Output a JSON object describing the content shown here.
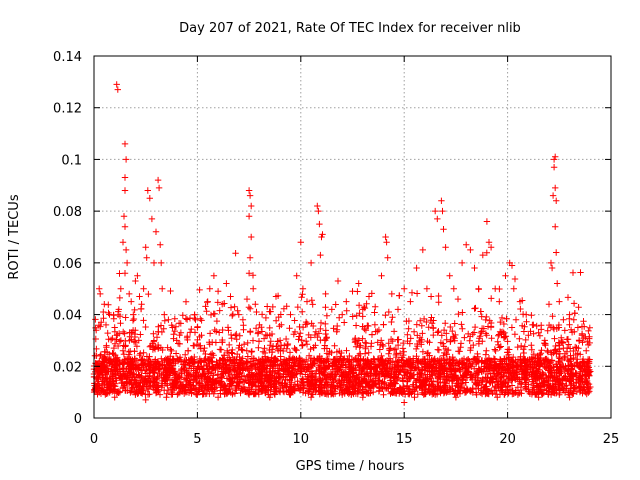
{
  "chart_data": {
    "type": "scatter",
    "title": "Day 207 of 2021, Rate Of TEC Index for receiver nlib",
    "xlabel": "GPS time / hours",
    "ylabel": "ROTI / TECUs",
    "xlim": [
      0,
      25
    ],
    "ylim": [
      0,
      0.14
    ],
    "xticks": [
      0,
      5,
      10,
      15,
      20,
      25
    ],
    "yticks": [
      0,
      0.02,
      0.04,
      0.06,
      0.08,
      0.1,
      0.12,
      0.14
    ],
    "xtick_labels": [
      "0",
      "5",
      "10",
      "15",
      "20",
      "25"
    ],
    "ytick_labels": [
      "0",
      "0.02",
      "0.04",
      "0.06",
      "0.08",
      "0.1",
      "0.12",
      "0.14"
    ],
    "grid": true,
    "marker": "plus",
    "color": "#ff0000",
    "points": [
      [
        0.0,
        0.017
      ],
      [
        0.1,
        0.021
      ],
      [
        0.2,
        0.015
      ],
      [
        0.3,
        0.024
      ],
      [
        0.4,
        0.019
      ],
      [
        0.5,
        0.013
      ],
      [
        0.6,
        0.028
      ],
      [
        0.7,
        0.018
      ],
      [
        0.8,
        0.022
      ],
      [
        0.9,
        0.016
      ],
      [
        0.25,
        0.05
      ],
      [
        0.3,
        0.048
      ],
      [
        0.35,
        0.037
      ],
      [
        0.45,
        0.041
      ],
      [
        0.5,
        0.044
      ],
      [
        1.1,
        0.129
      ],
      [
        1.15,
        0.127
      ],
      [
        1.0,
        0.035
      ],
      [
        1.2,
        0.042
      ],
      [
        1.3,
        0.03
      ],
      [
        1.4,
        0.026
      ],
      [
        1.5,
        0.106
      ],
      [
        1.55,
        0.1
      ],
      [
        1.5,
        0.093
      ],
      [
        1.5,
        0.088
      ],
      [
        1.45,
        0.078
      ],
      [
        1.5,
        0.074
      ],
      [
        1.4,
        0.068
      ],
      [
        1.55,
        0.065
      ],
      [
        1.6,
        0.06
      ],
      [
        1.5,
        0.056
      ],
      [
        1.7,
        0.048
      ],
      [
        1.8,
        0.045
      ],
      [
        1.9,
        0.04
      ],
      [
        2.0,
        0.053
      ],
      [
        2.1,
        0.055
      ],
      [
        2.2,
        0.047
      ],
      [
        2.3,
        0.044
      ],
      [
        2.4,
        0.05
      ],
      [
        2.5,
        0.066
      ],
      [
        2.55,
        0.062
      ],
      [
        2.6,
        0.088
      ],
      [
        2.7,
        0.085
      ],
      [
        2.8,
        0.077
      ],
      [
        2.9,
        0.06
      ],
      [
        3.0,
        0.072
      ],
      [
        3.1,
        0.092
      ],
      [
        3.15,
        0.089
      ],
      [
        3.2,
        0.067
      ],
      [
        3.25,
        0.06
      ],
      [
        3.3,
        0.05
      ],
      [
        3.4,
        0.04
      ],
      [
        3.6,
        0.038
      ],
      [
        3.8,
        0.035
      ],
      [
        4.0,
        0.03
      ],
      [
        4.2,
        0.033
      ],
      [
        4.5,
        0.031
      ],
      [
        4.8,
        0.028
      ],
      [
        5.0,
        0.035
      ],
      [
        5.2,
        0.032
      ],
      [
        5.5,
        0.045
      ],
      [
        5.6,
        0.05
      ],
      [
        5.8,
        0.055
      ],
      [
        6.0,
        0.049
      ],
      [
        6.2,
        0.044
      ],
      [
        6.4,
        0.052
      ],
      [
        6.6,
        0.047
      ],
      [
        6.8,
        0.043
      ],
      [
        7.0,
        0.04
      ],
      [
        7.2,
        0.038
      ],
      [
        7.4,
        0.046
      ],
      [
        7.5,
        0.088
      ],
      [
        7.55,
        0.086
      ],
      [
        7.6,
        0.082
      ],
      [
        7.5,
        0.078
      ],
      [
        7.6,
        0.07
      ],
      [
        7.55,
        0.062
      ],
      [
        7.5,
        0.056
      ],
      [
        7.7,
        0.05
      ],
      [
        7.8,
        0.044
      ],
      [
        8.0,
        0.036
      ],
      [
        8.5,
        0.032
      ],
      [
        8.8,
        0.047
      ],
      [
        9.0,
        0.03
      ],
      [
        9.2,
        0.028
      ],
      [
        9.5,
        0.04
      ],
      [
        9.8,
        0.055
      ],
      [
        10.0,
        0.068
      ],
      [
        10.1,
        0.05
      ],
      [
        10.3,
        0.045
      ],
      [
        10.5,
        0.06
      ],
      [
        10.8,
        0.082
      ],
      [
        10.85,
        0.08
      ],
      [
        10.9,
        0.075
      ],
      [
        11.0,
        0.07
      ],
      [
        11.05,
        0.071
      ],
      [
        10.95,
        0.063
      ],
      [
        11.2,
        0.048
      ],
      [
        11.5,
        0.042
      ],
      [
        11.8,
        0.053
      ],
      [
        12.0,
        0.04
      ],
      [
        12.2,
        0.045
      ],
      [
        12.5,
        0.049
      ],
      [
        12.8,
        0.052
      ],
      [
        13.0,
        0.042
      ],
      [
        13.3,
        0.047
      ],
      [
        13.6,
        0.043
      ],
      [
        13.9,
        0.055
      ],
      [
        14.1,
        0.07
      ],
      [
        14.15,
        0.068
      ],
      [
        14.2,
        0.062
      ],
      [
        14.4,
        0.048
      ],
      [
        14.7,
        0.042
      ],
      [
        15.0,
        0.05
      ],
      [
        15.3,
        0.045
      ],
      [
        15.6,
        0.058
      ],
      [
        15.9,
        0.065
      ],
      [
        16.1,
        0.05
      ],
      [
        16.3,
        0.047
      ],
      [
        16.5,
        0.08
      ],
      [
        16.6,
        0.077
      ],
      [
        16.8,
        0.084
      ],
      [
        16.85,
        0.08
      ],
      [
        16.9,
        0.073
      ],
      [
        17.0,
        0.066
      ],
      [
        17.2,
        0.055
      ],
      [
        17.4,
        0.05
      ],
      [
        17.6,
        0.046
      ],
      [
        17.8,
        0.06
      ],
      [
        18.0,
        0.067
      ],
      [
        18.2,
        0.065
      ],
      [
        18.4,
        0.058
      ],
      [
        18.6,
        0.05
      ],
      [
        18.8,
        0.063
      ],
      [
        19.0,
        0.076
      ],
      [
        19.1,
        0.068
      ],
      [
        19.2,
        0.066
      ],
      [
        19.4,
        0.05
      ],
      [
        19.6,
        0.045
      ],
      [
        19.9,
        0.055
      ],
      [
        20.1,
        0.06
      ],
      [
        20.3,
        0.05
      ],
      [
        20.6,
        0.045
      ],
      [
        20.9,
        0.04
      ],
      [
        21.2,
        0.036
      ],
      [
        21.5,
        0.033
      ],
      [
        21.8,
        0.03
      ],
      [
        22.0,
        0.044
      ],
      [
        22.1,
        0.06
      ],
      [
        22.15,
        0.058
      ],
      [
        22.2,
        0.086
      ],
      [
        22.25,
        0.1
      ],
      [
        22.3,
        0.101
      ],
      [
        22.25,
        0.097
      ],
      [
        22.3,
        0.089
      ],
      [
        22.35,
        0.084
      ],
      [
        22.3,
        0.074
      ],
      [
        22.35,
        0.064
      ],
      [
        22.4,
        0.052
      ],
      [
        22.5,
        0.045
      ],
      [
        22.7,
        0.038
      ],
      [
        23.0,
        0.04
      ],
      [
        23.2,
        0.038
      ],
      [
        23.4,
        0.035
      ],
      [
        23.6,
        0.032
      ],
      [
        23.8,
        0.026
      ],
      [
        23.9,
        0.022
      ],
      [
        24.0,
        0.018
      ],
      [
        23.5,
        0.012
      ],
      [
        23.0,
        0.015
      ],
      [
        22.8,
        0.02
      ],
      [
        0.5,
        0.01
      ],
      [
        1.0,
        0.008
      ],
      [
        1.5,
        0.012
      ],
      [
        2.0,
        0.009
      ],
      [
        2.5,
        0.007
      ],
      [
        3.0,
        0.011
      ],
      [
        3.5,
        0.008
      ],
      [
        4.0,
        0.012
      ],
      [
        4.5,
        0.01
      ],
      [
        5.0,
        0.009
      ],
      [
        5.5,
        0.011
      ],
      [
        6.0,
        0.008
      ],
      [
        6.5,
        0.01
      ],
      [
        7.0,
        0.012
      ],
      [
        7.5,
        0.009
      ],
      [
        8.0,
        0.011
      ],
      [
        8.5,
        0.008
      ],
      [
        9.0,
        0.01
      ],
      [
        9.5,
        0.009
      ],
      [
        10.0,
        0.011
      ],
      [
        10.5,
        0.008
      ],
      [
        11.0,
        0.01
      ],
      [
        11.5,
        0.012
      ],
      [
        12.0,
        0.009
      ],
      [
        12.5,
        0.011
      ],
      [
        13.0,
        0.008
      ],
      [
        13.5,
        0.01
      ],
      [
        14.0,
        0.009
      ],
      [
        14.5,
        0.011
      ],
      [
        15.0,
        0.006
      ],
      [
        15.5,
        0.008
      ],
      [
        16.0,
        0.01
      ],
      [
        16.5,
        0.009
      ],
      [
        17.0,
        0.011
      ],
      [
        17.5,
        0.008
      ],
      [
        18.0,
        0.01
      ],
      [
        18.5,
        0.009
      ],
      [
        19.0,
        0.011
      ],
      [
        19.5,
        0.008
      ],
      [
        20.0,
        0.01
      ],
      [
        20.5,
        0.009
      ],
      [
        21.0,
        0.011
      ],
      [
        21.5,
        0.008
      ],
      [
        22.0,
        0.01
      ],
      [
        22.5,
        0.009
      ],
      [
        23.0,
        0.008
      ],
      [
        23.5,
        0.01
      ],
      [
        24.0,
        0.012
      ]
    ]
  }
}
